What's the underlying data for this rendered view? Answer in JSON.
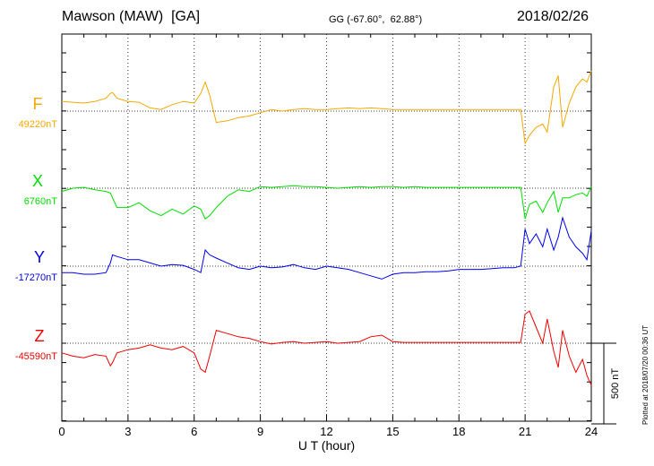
{
  "header": {
    "station": "Mawson (MAW)  [GA]",
    "coords": "GG (-67.60°,  62.88°)",
    "date": "2018/02/26"
  },
  "side_note": "Plotted at 2018/07/20 00:36 UT",
  "scale_bar_label": "500 nT",
  "colors": {
    "F": "#f5a800",
    "X": "#00dd00",
    "Y": "#0000ee",
    "Z": "#ee0000"
  },
  "chart_data": {
    "type": "line",
    "xlabel": "U T (hour)",
    "xlim": [
      0,
      24
    ],
    "x_ticks": [
      "0",
      "3",
      "6",
      "9",
      "12",
      "15",
      "18",
      "21",
      "24"
    ],
    "scale_nT": 500,
    "x": [
      0,
      0.5,
      1,
      1.5,
      2,
      2.2,
      2.3,
      2.5,
      3,
      3.5,
      4,
      4.5,
      5,
      5.5,
      6,
      6.3,
      6.5,
      6.7,
      7,
      7.5,
      8,
      8.5,
      9,
      9.5,
      10,
      10.5,
      11,
      11.5,
      12,
      12.5,
      13,
      13.5,
      14,
      14.5,
      15,
      15.5,
      16,
      16.5,
      17,
      17.5,
      18,
      18.5,
      19,
      19.5,
      20,
      20.5,
      20.8,
      21,
      21.2,
      21.5,
      21.8,
      22,
      22.3,
      22.5,
      22.7,
      23,
      23.3,
      23.6,
      23.8,
      24
    ],
    "series": [
      {
        "name": "F",
        "baseline_label": "49220nT",
        "values": [
          60,
          55,
          50,
          60,
          80,
          110,
          115,
          80,
          60,
          55,
          20,
          10,
          40,
          60,
          50,
          110,
          180,
          100,
          -70,
          -60,
          -40,
          -30,
          -10,
          10,
          0,
          10,
          15,
          10,
          10,
          15,
          20,
          15,
          20,
          15,
          10,
          10,
          10,
          10,
          10,
          10,
          10,
          10,
          10,
          10,
          10,
          10,
          10,
          -200,
          -150,
          -100,
          -80,
          -130,
          150,
          220,
          -100,
          50,
          150,
          200,
          180,
          250
        ]
      },
      {
        "name": "X",
        "baseline_label": "6760nT",
        "values": [
          -20,
          0,
          5,
          -10,
          -20,
          -30,
          -60,
          -120,
          -120,
          -90,
          -140,
          -170,
          -130,
          -160,
          -110,
          -130,
          -190,
          -170,
          -120,
          -50,
          -10,
          -20,
          10,
          5,
          10,
          15,
          10,
          10,
          5,
          0,
          5,
          10,
          5,
          10,
          10,
          5,
          10,
          5,
          5,
          5,
          5,
          5,
          5,
          5,
          5,
          5,
          5,
          -190,
          -100,
          -80,
          -150,
          -90,
          -20,
          -150,
          -60,
          -60,
          -40,
          -30,
          -50,
          10
        ]
      },
      {
        "name": "Y",
        "baseline_label": "-17270nT",
        "values": [
          -40,
          -40,
          -50,
          -50,
          -40,
          20,
          70,
          60,
          40,
          40,
          20,
          0,
          10,
          5,
          -20,
          -40,
          100,
          70,
          50,
          20,
          -10,
          -20,
          0,
          -10,
          -5,
          10,
          -10,
          -20,
          0,
          -10,
          -20,
          -40,
          -60,
          -80,
          -50,
          -40,
          -40,
          -35,
          -35,
          -30,
          -20,
          -20,
          -20,
          -15,
          -10,
          -10,
          0,
          230,
          140,
          200,
          120,
          230,
          100,
          180,
          300,
          180,
          120,
          80,
          40,
          220
        ]
      },
      {
        "name": "Z",
        "baseline_label": "-45590nT",
        "values": [
          -60,
          -80,
          -90,
          -70,
          -80,
          -140,
          -120,
          -60,
          -40,
          -30,
          -10,
          -30,
          -40,
          -20,
          -60,
          -160,
          -180,
          -80,
          80,
          60,
          40,
          30,
          10,
          -5,
          5,
          10,
          0,
          5,
          10,
          0,
          5,
          10,
          40,
          50,
          10,
          5,
          5,
          5,
          5,
          5,
          5,
          5,
          5,
          5,
          5,
          5,
          5,
          180,
          200,
          100,
          0,
          150,
          -50,
          -150,
          80,
          -80,
          -180,
          -100,
          -200,
          -260
        ]
      }
    ]
  }
}
